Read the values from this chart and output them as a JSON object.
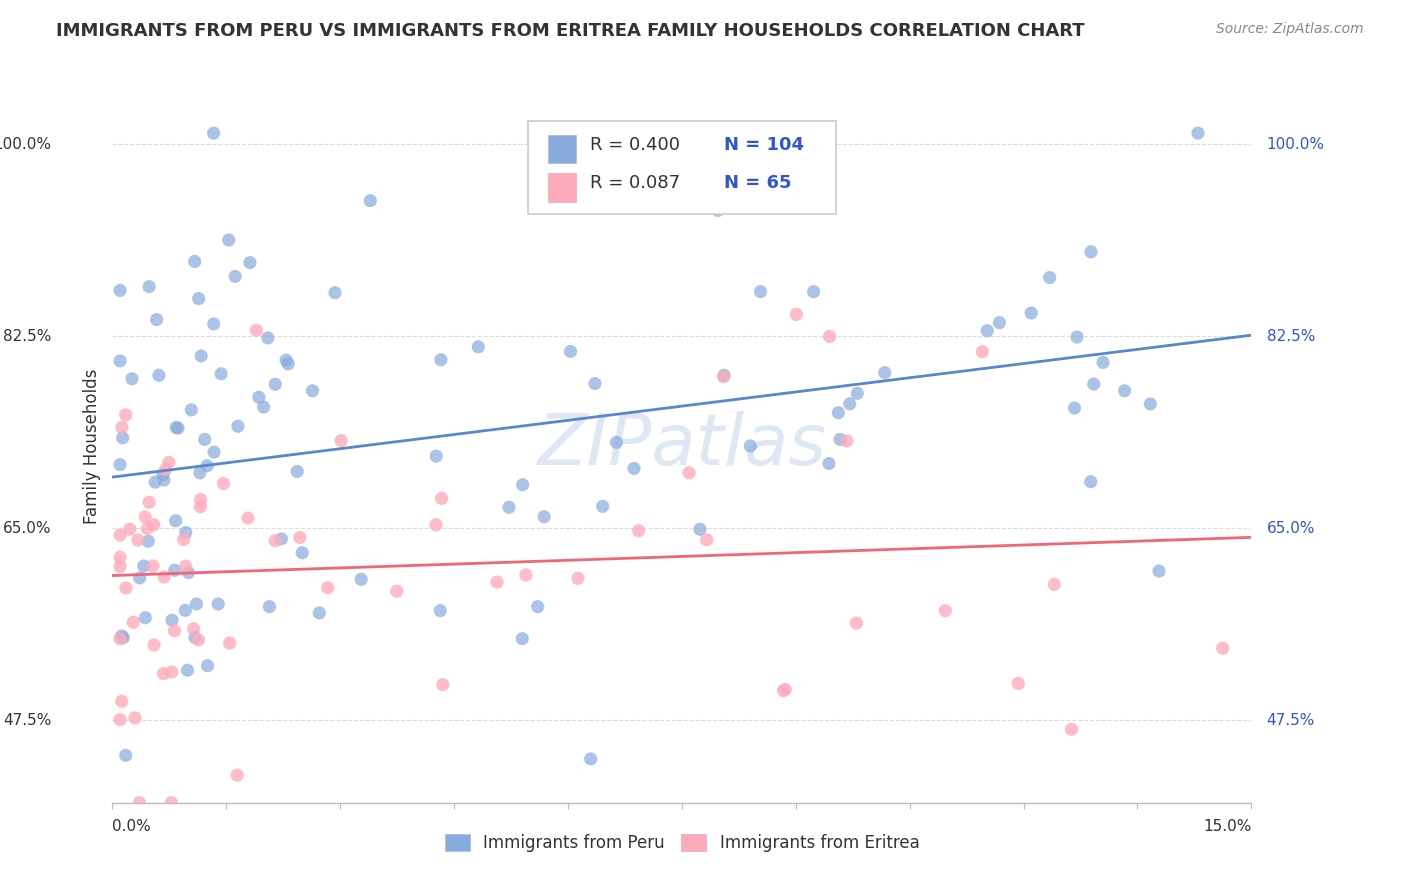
{
  "title": "IMMIGRANTS FROM PERU VS IMMIGRANTS FROM ERITREA FAMILY HOUSEHOLDS CORRELATION CHART",
  "source": "Source: ZipAtlas.com",
  "ylabel": "Family Households",
  "ytick_labels": [
    "47.5%",
    "65.0%",
    "82.5%",
    "100.0%"
  ],
  "ytick_vals": [
    0.475,
    0.65,
    0.825,
    1.0
  ],
  "xlim": [
    0.0,
    0.15
  ],
  "ylim": [
    0.4,
    1.05
  ],
  "peru_color": "#88AADD",
  "eritrea_color": "#FFAABB",
  "peru_line_color": "#5588CC",
  "eritrea_line_color": "#EE6677",
  "peru_R": 0.4,
  "peru_N": 104,
  "eritrea_R": 0.087,
  "eritrea_N": 65,
  "watermark": "ZIPatlas",
  "background_color": "#ffffff",
  "legend_text_color": "#3355CC",
  "axis_label_color": "#333333",
  "grid_color": "#dddddd",
  "title_fontsize": 13,
  "axis_fontsize": 11,
  "legend_fontsize": 12
}
